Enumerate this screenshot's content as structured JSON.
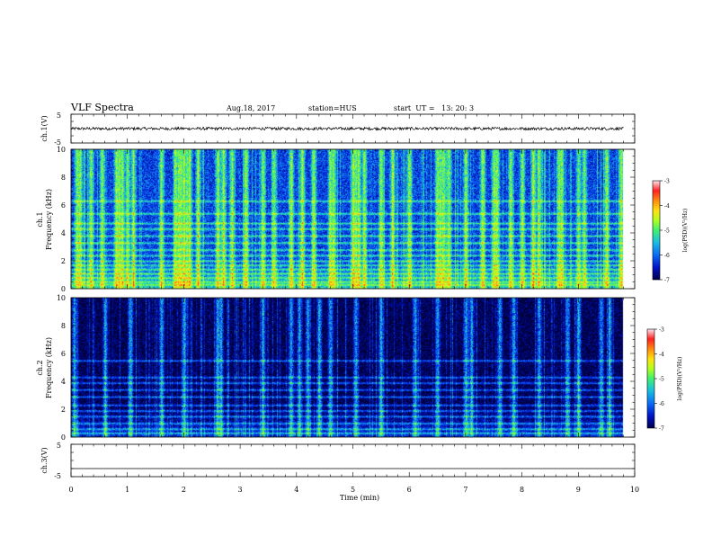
{
  "header": {
    "title": "VLF Spectra",
    "date": "Aug.18, 2017",
    "station": "station=HUS",
    "start": "start  UT =   13: 20: 3"
  },
  "chart_data": [
    {
      "type": "line",
      "name": "waveform-ch1",
      "ylabel": "ch.1(V)",
      "ylim": [
        -5,
        5
      ],
      "yticks": [
        5,
        -5
      ],
      "xlim": [
        0,
        10
      ],
      "trace": {
        "level": 0,
        "noise_amplitude": 0.5,
        "end_minute": 9.8
      }
    },
    {
      "type": "heatmap",
      "name": "spectrogram-ch1",
      "ylabel_top": "ch.1",
      "ylabel": "Frequency (kHz)",
      "ylim": [
        0,
        10
      ],
      "yticks": [
        0,
        2,
        4,
        6,
        8,
        10
      ],
      "xlim": [
        0,
        10
      ],
      "data_end_minute": 9.8,
      "colorbar": {
        "label": "log(PSD)(V²/Hz)",
        "ticks": [
          -3,
          -4,
          -5,
          -6,
          -7
        ],
        "range": [
          -7,
          -3
        ]
      },
      "background_level": -6.3,
      "bands_khz": [
        0.3,
        0.5,
        0.8,
        1.1,
        1.4,
        1.7,
        2.0,
        2.4,
        2.8,
        3.3,
        3.8,
        4.3,
        4.7,
        5.4,
        6.3
      ],
      "bright_bursts_min": [
        0.1,
        0.15,
        0.35,
        0.55,
        0.8,
        0.85,
        0.9,
        1.0,
        1.1,
        1.6,
        1.85,
        1.9,
        1.95,
        2.0,
        2.05,
        2.1,
        2.25,
        2.6,
        2.7,
        2.85,
        3.1,
        3.4,
        3.6,
        3.9,
        4.1,
        4.3,
        4.6,
        4.65,
        5.0,
        5.05,
        5.1,
        5.2,
        5.5,
        5.7,
        6.0,
        6.5,
        6.55,
        6.6,
        6.7,
        7.0,
        7.3,
        7.5,
        7.55,
        7.8,
        8.0,
        8.2,
        8.3,
        8.65,
        8.7,
        9.0,
        9.1,
        9.5,
        9.75
      ]
    },
    {
      "type": "heatmap",
      "name": "spectrogram-ch2",
      "ylabel_top": "ch.2",
      "ylabel": "Frequency (kHz)",
      "ylim": [
        0,
        10
      ],
      "yticks": [
        0,
        2,
        4,
        6,
        8,
        10
      ],
      "xlim": [
        0,
        10
      ],
      "data_end_minute": 9.8,
      "colorbar": {
        "label": "log(PSD)(V²/Hz)",
        "ticks": [
          -3,
          -4,
          -5,
          -6,
          -7
        ],
        "range": [
          -7,
          -3
        ]
      },
      "background_level": -7.0,
      "bands_khz": [
        0.3,
        0.6,
        1.0,
        1.5,
        1.9,
        2.3,
        2.9,
        3.4,
        3.9,
        4.3,
        5.5
      ],
      "bright_bursts_min": [
        0.05,
        0.6,
        1.05,
        1.6,
        2.0,
        2.6,
        2.65,
        3.4,
        3.9,
        4.05,
        4.2,
        4.4,
        4.6,
        5.05,
        5.5,
        6.1,
        6.5,
        7.0,
        7.1,
        7.6,
        7.85,
        8.3,
        8.8,
        9.0,
        9.4,
        9.55
      ]
    },
    {
      "type": "line",
      "name": "waveform-ch3",
      "ylabel": "ch.3(V)",
      "ylim": [
        -5,
        5
      ],
      "yticks": [
        5,
        -5
      ],
      "xlim": [
        0,
        10
      ],
      "trace": {
        "level": -2.5,
        "noise_amplitude": 0,
        "end_minute": 9.8
      }
    }
  ],
  "xaxis": {
    "label": "Time (min)",
    "ticks": [
      0,
      1,
      2,
      3,
      4,
      5,
      6,
      7,
      8,
      9,
      10
    ]
  },
  "colors": {
    "colormap": [
      "#000000",
      "#00004a",
      "#0012c4",
      "#0a4cf5",
      "#19a6e8",
      "#2ed9b0",
      "#57f05a",
      "#a8ff2a",
      "#fff21a",
      "#ff9d10",
      "#ff3a20",
      "#ffd0d8"
    ],
    "axis": "#000000"
  }
}
